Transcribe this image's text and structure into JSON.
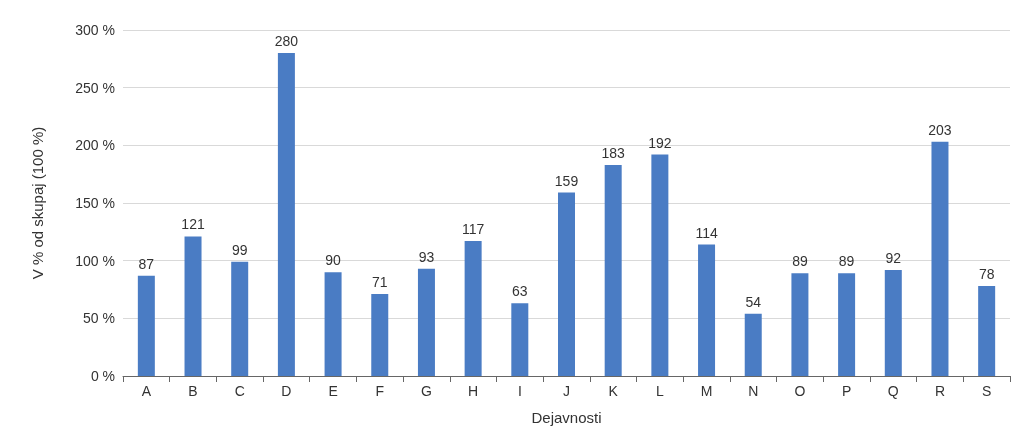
{
  "chart_data": {
    "type": "bar",
    "xlabel": "Dejavnosti",
    "ylabel": "V % od skupaj (100 %)",
    "categories": [
      "A",
      "B",
      "C",
      "D",
      "E",
      "F",
      "G",
      "H",
      "I",
      "J",
      "K",
      "L",
      "M",
      "N",
      "O",
      "P",
      "Q",
      "R",
      "S"
    ],
    "values": [
      87,
      121,
      99,
      280,
      90,
      71,
      93,
      117,
      63,
      159,
      183,
      192,
      114,
      54,
      89,
      89,
      92,
      203,
      78
    ],
    "color": "#4a7cc4",
    "ylim": [
      0,
      300
    ],
    "yticks": [
      {
        "value": 0,
        "label": "0 %"
      },
      {
        "value": 50,
        "label": "50 %"
      },
      {
        "value": 100,
        "label": "100 %"
      },
      {
        "value": 150,
        "label": "150 %"
      },
      {
        "value": 200,
        "label": "200 %"
      },
      {
        "value": 250,
        "label": "250 %"
      },
      {
        "value": 300,
        "label": "300 %"
      }
    ],
    "grid": "y",
    "data_labels": true
  }
}
